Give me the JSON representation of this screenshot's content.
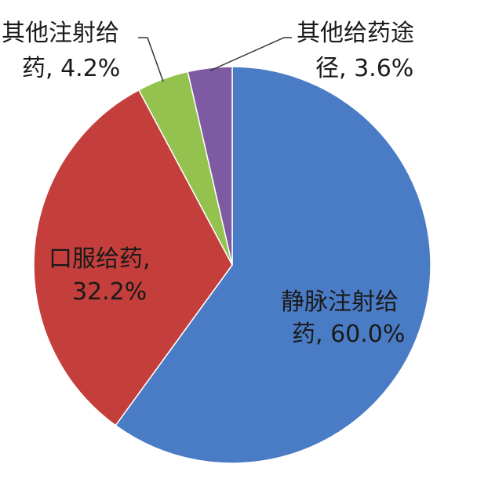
{
  "chart_data": {
    "type": "pie",
    "categories": [
      "静脉注射给药",
      "口服给药",
      "其他注射给药",
      "其他给药途径"
    ],
    "values": [
      60.0,
      32.2,
      4.2,
      3.6
    ],
    "colors": [
      "#4a7cc5",
      "#c43e3b",
      "#93c24f",
      "#7e5aa3"
    ],
    "labels": [
      {
        "line1": "静脉注射给",
        "line2": "药, 60.0%"
      },
      {
        "line1": "口服给药,",
        "line2": "32.2%"
      },
      {
        "line1": "其他注射给",
        "line2": "药, 4.2%"
      },
      {
        "line1": "其他给药途",
        "line2": "径, 3.6%"
      }
    ],
    "title": "",
    "legend": "none"
  }
}
